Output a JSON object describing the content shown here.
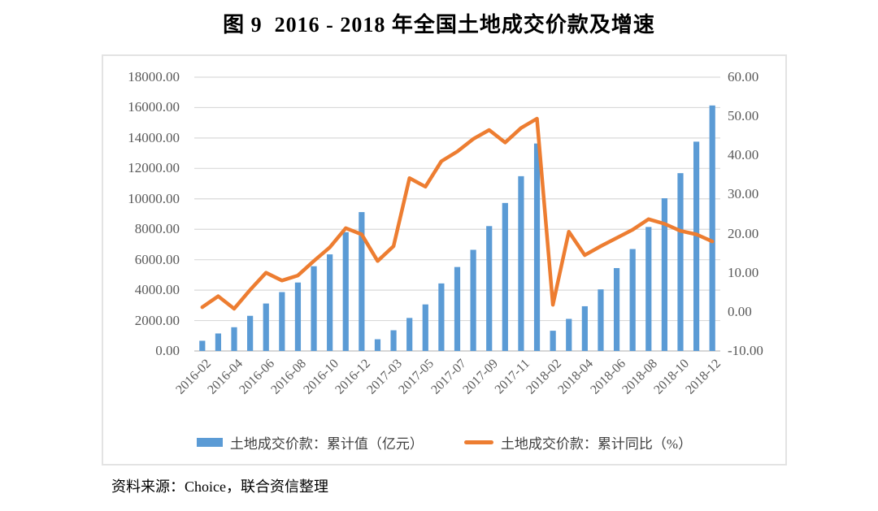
{
  "title": "图 9  2016 - 2018 年全国土地成交价款及增速",
  "source": "资料来源：Choice，联合资信整理",
  "colors": {
    "bar": "#5B9BD5",
    "line": "#ED7D31",
    "gridline": "#D9D9D9",
    "axis_line": "#BFBFBF",
    "axis_text": "#595959"
  },
  "legend": [
    {
      "label": "土地成交价款：累计值（亿元）",
      "swatch": "bar-swatch",
      "color": "#5B9BD5"
    },
    {
      "label": "土地成交价款：累计同比（%）",
      "swatch": "line-swatch",
      "color": "#ED7D31"
    }
  ],
  "chart_data": {
    "type": "combo-bar-line",
    "title": "图 9  2016 - 2018 年全国土地成交价款及增速",
    "categories": [
      "2016-02",
      "2016-03",
      "2016-04",
      "2016-05",
      "2016-06",
      "2016-07",
      "2016-08",
      "2016-09",
      "2016-10",
      "2016-11",
      "2016-12",
      "2017-02",
      "2017-03",
      "2017-04",
      "2017-05",
      "2017-06",
      "2017-07",
      "2017-08",
      "2017-09",
      "2017-10",
      "2017-11",
      "2017-12",
      "2018-02",
      "2018-03",
      "2018-04",
      "2018-05",
      "2018-06",
      "2018-07",
      "2018-08",
      "2018-09",
      "2018-10",
      "2018-11",
      "2018-12"
    ],
    "x_label_every": 2,
    "series": [
      {
        "name": "土地成交价款：累计值（亿元）",
        "type": "bar",
        "axis": "left",
        "color": "#5B9BD5",
        "values": [
          670,
          1150,
          1560,
          2310,
          3120,
          3870,
          4500,
          5570,
          6350,
          7810,
          9130,
          770,
          1360,
          2170,
          3060,
          4440,
          5520,
          6650,
          8210,
          9730,
          11490,
          13640,
          1330,
          2110,
          2940,
          4050,
          5450,
          6700,
          8150,
          10040,
          11690,
          13760,
          16140
        ]
      },
      {
        "name": "土地成交价款：累计同比（%）",
        "type": "line",
        "axis": "right",
        "color": "#ED7D31",
        "values": [
          1.2,
          4.0,
          0.8,
          5.6,
          10.0,
          8.0,
          9.3,
          13.0,
          16.5,
          21.4,
          19.8,
          13.0,
          16.8,
          34.2,
          32.0,
          38.5,
          41.0,
          44.2,
          46.5,
          43.3,
          47.0,
          49.4,
          1.8,
          20.5,
          14.5,
          16.8,
          18.9,
          21.0,
          23.7,
          22.5,
          20.7,
          19.8,
          18.0
        ]
      }
    ],
    "left_axis": {
      "min": 0,
      "max": 18000,
      "step": 2000,
      "format": "two-decimals"
    },
    "right_axis": {
      "min": -10,
      "max": 60,
      "step": 10,
      "format": "two-decimals"
    },
    "grid": true,
    "legend_position": "bottom"
  }
}
